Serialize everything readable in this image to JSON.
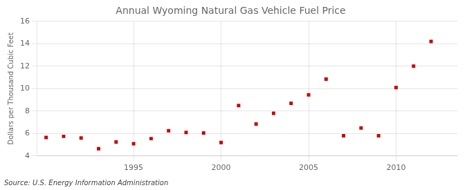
{
  "chart_data": {
    "type": "scatter",
    "title": "Annual Wyoming Natural Gas Vehicle Fuel Price",
    "ylabel": "Dollars per Thousand Cubic Feet",
    "annotation": "Source: U.S. Energy Information Administration",
    "x": [
      1990,
      1991,
      1992,
      1993,
      1994,
      1995,
      1996,
      1997,
      1998,
      1999,
      2000,
      2001,
      2002,
      2003,
      2004,
      2005,
      2006,
      2007,
      2008,
      2009,
      2010,
      2011,
      2012
    ],
    "values": [
      5.65,
      5.75,
      5.6,
      4.65,
      5.25,
      5.1,
      5.55,
      6.25,
      6.1,
      6.05,
      5.2,
      8.5,
      6.85,
      7.8,
      8.7,
      9.45,
      10.85,
      5.8,
      6.5,
      5.8,
      10.1,
      12.0,
      14.2
    ],
    "color": "#cc0000",
    "marker": "square",
    "xlim": [
      1989.5,
      2013.5
    ],
    "xticks": [
      1995,
      2000,
      2005,
      2010
    ],
    "ylim": [
      4,
      16
    ],
    "yticks": [
      4,
      6,
      8,
      10,
      12,
      14,
      16
    ],
    "grid": true
  }
}
